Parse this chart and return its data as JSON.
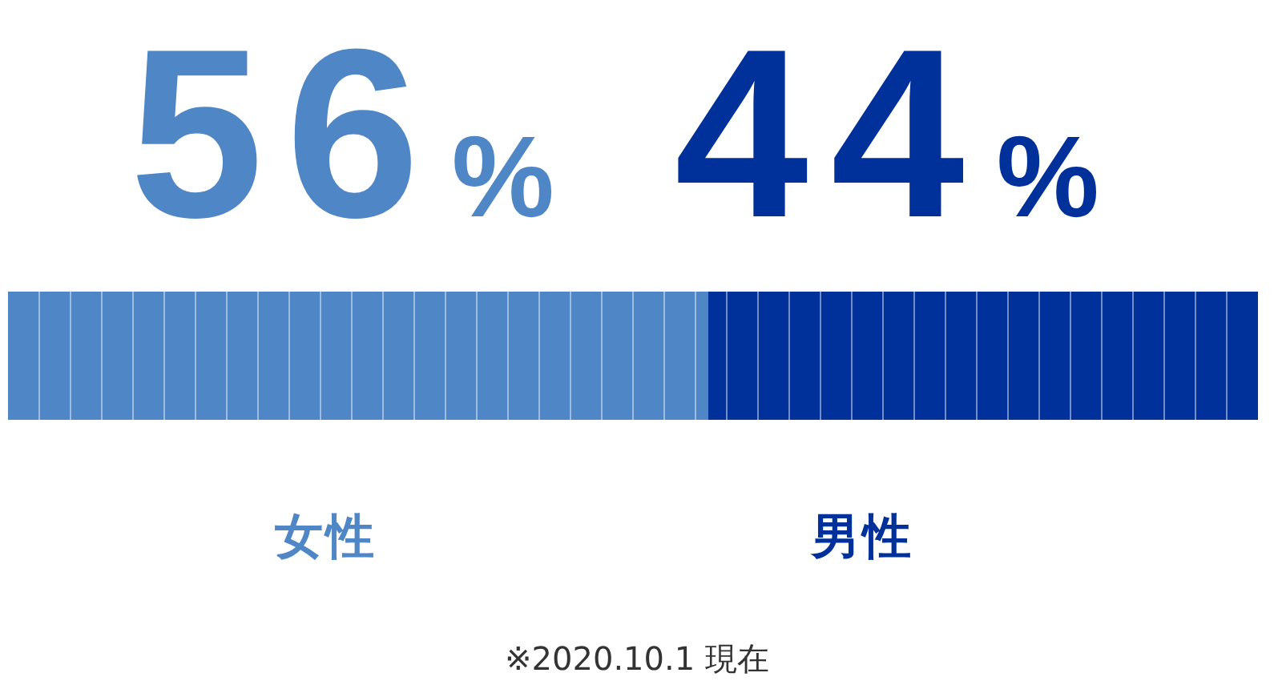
{
  "chart_data": {
    "type": "bar",
    "orientation": "horizontal",
    "stacked": true,
    "categories": [
      null
    ],
    "series": [
      {
        "name": "女性",
        "color": "#4f86c6",
        "values": [
          56
        ],
        "value_labels": [
          "56%"
        ]
      },
      {
        "name": "男性",
        "color": "#00309a",
        "values": [
          44
        ],
        "value_labels": [
          "44%"
        ]
      }
    ],
    "annotations": [
      "※2020.10.1 現在"
    ]
  }
}
